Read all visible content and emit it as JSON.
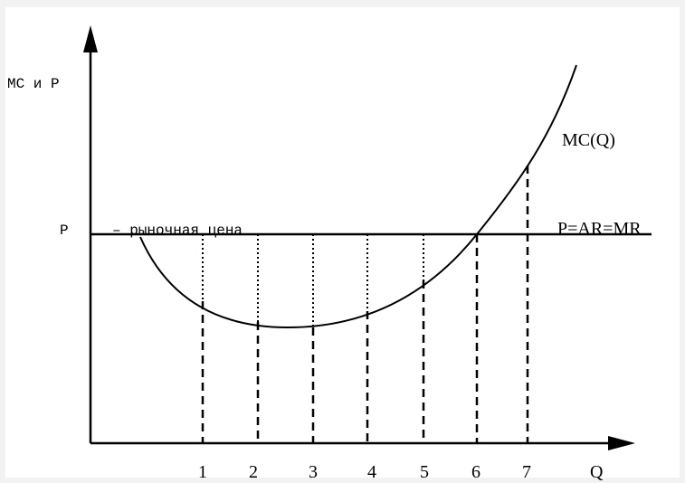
{
  "y_axis_label": "MC и P",
  "price_label": "P",
  "price_note": "– рыночная цена",
  "curve_label": "MC(Q)",
  "line_label": "P=AR=MR",
  "x_ticks": [
    "1",
    "2",
    "3",
    "4",
    "5",
    "6",
    "7"
  ],
  "x_axis_label": "Q"
}
